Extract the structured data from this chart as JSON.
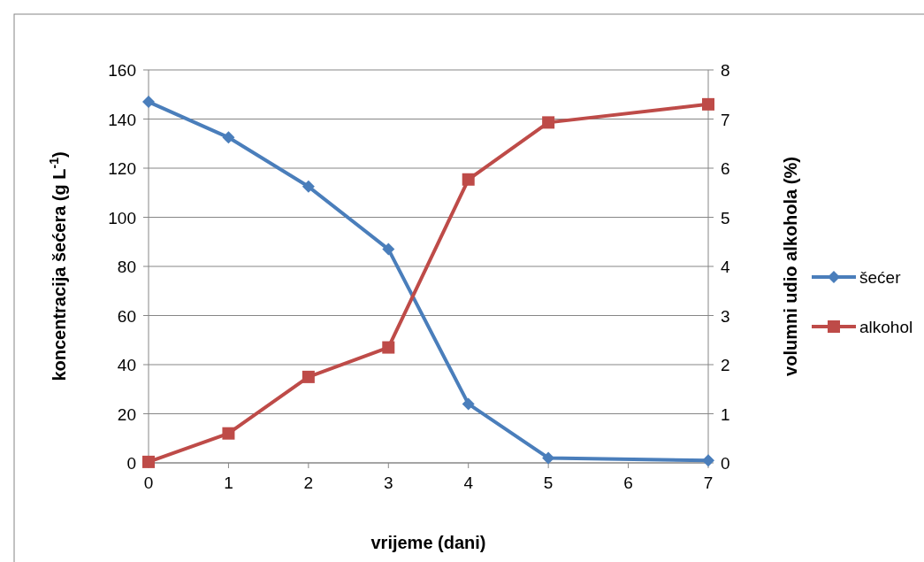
{
  "chart_data": {
    "type": "line",
    "xlabel": "vrijeme (dani)",
    "ylabel": "koncentracija šećera (g L$^{-1}$)",
    "y2label": "volumni udio alkohola (%)",
    "xlim": [
      0,
      7
    ],
    "xticks": [
      0,
      1,
      2,
      3,
      4,
      5,
      6,
      7
    ],
    "ylim": [
      0,
      160
    ],
    "yticks": [
      0,
      20,
      40,
      60,
      80,
      100,
      120,
      140,
      160
    ],
    "y2lim": [
      0,
      8
    ],
    "y2ticks": [
      0,
      1,
      2,
      3,
      4,
      5,
      6,
      7,
      8
    ],
    "grid": "y",
    "legend": "right",
    "series": [
      {
        "name": "šećer",
        "color": "#4a7ebb",
        "marker": "diamond",
        "x": [
          0,
          1,
          2,
          3,
          4,
          5,
          7
        ],
        "values": [
          147,
          132.5,
          112.5,
          87,
          24,
          2,
          1
        ]
      },
      {
        "name": "alkohol",
        "color": "#be4b48",
        "marker": "square",
        "axis": "y2",
        "x": [
          0,
          1,
          2,
          3,
          4,
          5,
          7
        ],
        "values": [
          0.02,
          0.6,
          1.75,
          2.35,
          5.77,
          6.93,
          7.3
        ]
      }
    ]
  }
}
